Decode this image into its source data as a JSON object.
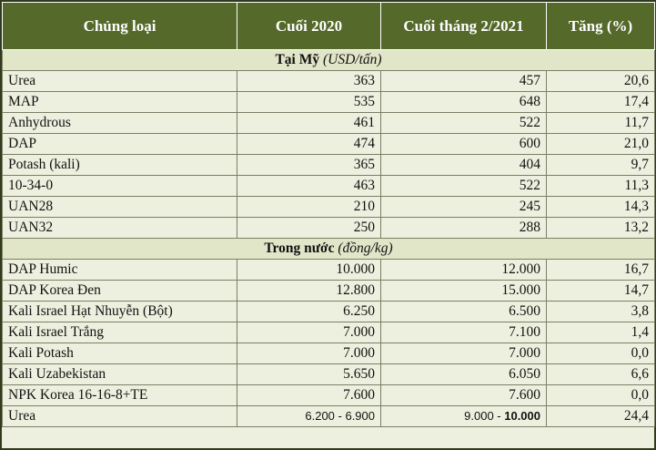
{
  "header": {
    "col1": "Chủng loại",
    "col2": "Cuối 2020",
    "col3": "Cuối tháng 2/2021",
    "col4": "Tăng (%)"
  },
  "sections": [
    {
      "title": "Tại Mỹ",
      "unit": "(USD/tấn)",
      "rows": [
        {
          "name": "Urea",
          "v2020": "363",
          "v2021": "457",
          "inc": "20,6"
        },
        {
          "name": "MAP",
          "v2020": "535",
          "v2021": "648",
          "inc": "17,4"
        },
        {
          "name": "Anhydrous",
          "v2020": "461",
          "v2021": "522",
          "inc": "11,7"
        },
        {
          "name": "DAP",
          "v2020": "474",
          "v2021": "600",
          "inc": "21,0"
        },
        {
          "name": "Potash (kali)",
          "v2020": "365",
          "v2021": "404",
          "inc": "9,7"
        },
        {
          "name": "10-34-0",
          "v2020": "463",
          "v2021": "522",
          "inc": "11,3"
        },
        {
          "name": "UAN28",
          "v2020": "210",
          "v2021": "245",
          "inc": "14,3"
        },
        {
          "name": "UAN32",
          "v2020": "250",
          "v2021": "288",
          "inc": "13,2"
        }
      ]
    },
    {
      "title": "Trong nước",
      "unit": "(đồng/kg)",
      "rows": [
        {
          "name": "DAP Humic",
          "v2020": "10.000",
          "v2021": "12.000",
          "inc": "16,7"
        },
        {
          "name": "DAP Korea Đen",
          "v2020": "12.800",
          "v2021": "15.000",
          "inc": "14,7"
        },
        {
          "name": "Kali Israel Hạt Nhuyễn (Bột)",
          "v2020": "6.250",
          "v2021": "6.500",
          "inc": "3,8"
        },
        {
          "name": "Kali Israel Trắng",
          "v2020": "7.000",
          "v2021": "7.100",
          "inc": "1,4"
        },
        {
          "name": "Kali Potash",
          "v2020": "7.000",
          "v2021": "7.000",
          "inc": "0,0"
        },
        {
          "name": "Kali Uzabekistan",
          "v2020": "5.650",
          "v2021": "6.050",
          "inc": "6,6"
        },
        {
          "name": "NPK Korea 16-16-8+TE",
          "v2020": "7.600",
          "v2021": "7.600",
          "inc": "0,0"
        }
      ]
    }
  ],
  "last_row": {
    "name": "Urea",
    "v2020": "6.200 - 6.900",
    "v2021_a": "9.000 - ",
    "v2021_b": "10.000",
    "inc": "24,4"
  },
  "colors": {
    "header_bg": "#55692a",
    "cell_bg": "#eef0df",
    "border": "#2f3b1c"
  }
}
